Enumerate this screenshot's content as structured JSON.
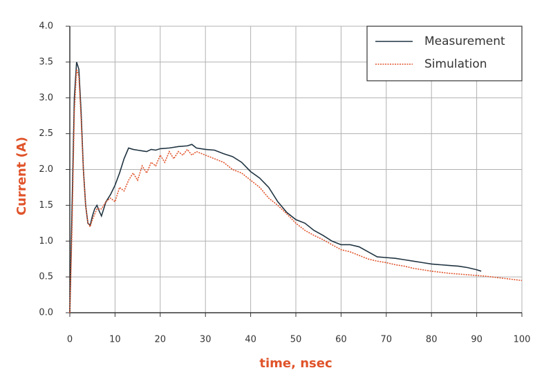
{
  "chart_data": {
    "type": "line",
    "xlabel": "time, nsec",
    "ylabel": "Current (A)",
    "xlim": [
      0,
      100
    ],
    "xticks": [
      0,
      10,
      20,
      30,
      40,
      50,
      60,
      70,
      80,
      90,
      100
    ],
    "ylim": [
      0,
      4
    ],
    "yticks": [
      {
        "value": 0,
        "label": "0.0"
      },
      0.5,
      {
        "value": 1,
        "label": "1.0"
      },
      1.5,
      {
        "value": 2,
        "label": "2.0"
      },
      2.5,
      {
        "value": 3,
        "label": "3.0"
      },
      3.5,
      {
        "value": 4,
        "label": "4.0"
      }
    ],
    "grid": true,
    "legend": "upper right",
    "series": [
      {
        "name": "Measurement",
        "color": "#1f3340",
        "style": "solid",
        "x": [
          0,
          0.5,
          1,
          1.5,
          2,
          2.5,
          3,
          3.5,
          4,
          4.5,
          5,
          5.5,
          6,
          6.5,
          7,
          7.5,
          8,
          9,
          10,
          11,
          12,
          13,
          14,
          15,
          16,
          17,
          18,
          19,
          20,
          22,
          24,
          26,
          27,
          28,
          30,
          32,
          34,
          36,
          38,
          40,
          42,
          44,
          46,
          48,
          50,
          52,
          54,
          56,
          58,
          60,
          62,
          64,
          66,
          68,
          70,
          72,
          74,
          76,
          78,
          80,
          82,
          84,
          86,
          88,
          90,
          91
        ],
        "values": [
          0,
          1.5,
          3.0,
          3.5,
          3.4,
          2.8,
          2.0,
          1.5,
          1.25,
          1.22,
          1.35,
          1.45,
          1.5,
          1.42,
          1.35,
          1.45,
          1.55,
          1.65,
          1.78,
          1.95,
          2.15,
          2.3,
          2.28,
          2.27,
          2.26,
          2.25,
          2.28,
          2.27,
          2.29,
          2.3,
          2.32,
          2.33,
          2.35,
          2.3,
          2.28,
          2.27,
          2.22,
          2.18,
          2.1,
          1.97,
          1.88,
          1.75,
          1.55,
          1.4,
          1.3,
          1.25,
          1.15,
          1.08,
          1.0,
          0.95,
          0.95,
          0.92,
          0.85,
          0.78,
          0.77,
          0.76,
          0.74,
          0.72,
          0.7,
          0.68,
          0.67,
          0.66,
          0.65,
          0.63,
          0.6,
          0.58
        ]
      },
      {
        "name": "Simulation",
        "color": "#e0532a",
        "style": "dotted",
        "x": [
          0,
          0.5,
          1,
          1.5,
          2,
          2.5,
          3,
          3.5,
          4,
          4.5,
          5,
          6,
          7,
          8,
          9,
          10,
          11,
          12,
          13,
          14,
          15,
          16,
          17,
          18,
          19,
          20,
          21,
          22,
          23,
          24,
          25,
          26,
          27,
          28,
          30,
          32,
          34,
          36,
          38,
          40,
          42,
          44,
          46,
          48,
          50,
          52,
          54,
          56,
          58,
          60,
          62,
          64,
          66,
          68,
          70,
          72,
          74,
          76,
          78,
          80,
          84,
          88,
          92,
          96,
          100
        ],
        "values": [
          0,
          1.2,
          2.8,
          3.4,
          3.3,
          2.7,
          2.0,
          1.5,
          1.25,
          1.2,
          1.3,
          1.45,
          1.45,
          1.55,
          1.6,
          1.55,
          1.75,
          1.7,
          1.85,
          1.95,
          1.85,
          2.05,
          1.95,
          2.1,
          2.05,
          2.2,
          2.1,
          2.25,
          2.15,
          2.25,
          2.2,
          2.28,
          2.2,
          2.25,
          2.2,
          2.15,
          2.1,
          2.0,
          1.95,
          1.85,
          1.75,
          1.6,
          1.5,
          1.38,
          1.25,
          1.15,
          1.08,
          1.02,
          0.95,
          0.88,
          0.85,
          0.8,
          0.75,
          0.72,
          0.7,
          0.67,
          0.65,
          0.62,
          0.6,
          0.58,
          0.55,
          0.53,
          0.51,
          0.48,
          0.45
        ]
      }
    ]
  }
}
